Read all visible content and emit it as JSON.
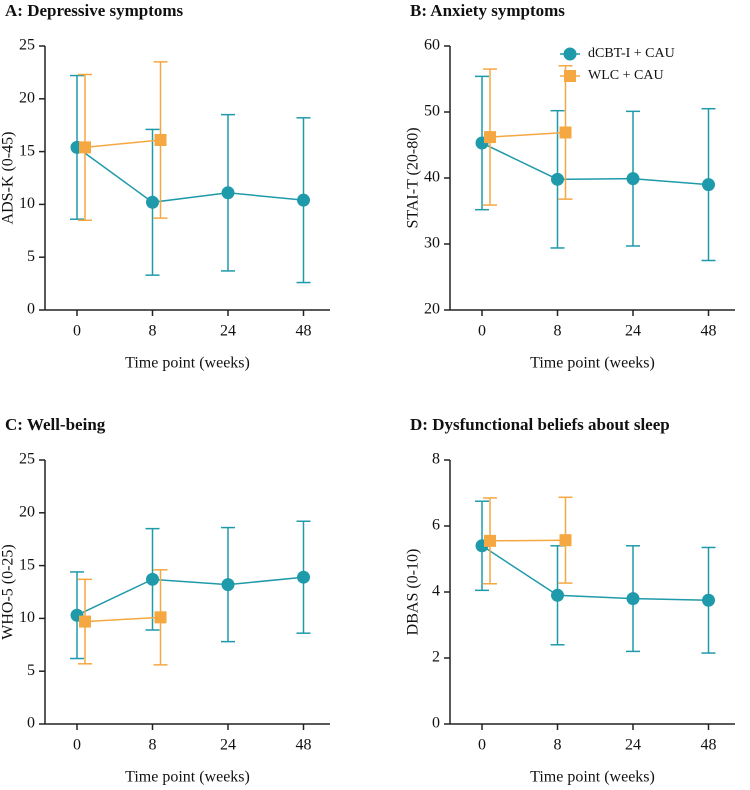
{
  "chart_data": [
    {
      "type": "line",
      "title": "A: Depressive symptoms",
      "xlabel": "Time point (weeks)",
      "ylabel": "ADS-K (0-45)",
      "categories": [
        "0",
        "8",
        "24",
        "48"
      ],
      "ylim": [
        0,
        25
      ],
      "yticks": [
        0,
        5,
        10,
        15,
        20,
        25
      ],
      "series": [
        {
          "color": "#1f9aaa",
          "marker": "circle",
          "values": [
            15.4,
            10.2,
            11.1,
            10.4
          ],
          "errors": [
            6.8,
            6.9,
            7.4,
            7.8
          ]
        },
        {
          "color": "#f5a742",
          "marker": "square",
          "values": [
            15.4,
            16.1,
            null,
            null
          ],
          "errors": [
            6.9,
            7.4,
            null,
            null
          ]
        }
      ]
    },
    {
      "type": "line",
      "title": "B: Anxiety symptoms",
      "xlabel": "Time point (weeks)",
      "ylabel": "STAI-T (20-80)",
      "categories": [
        "0",
        "8",
        "24",
        "48"
      ],
      "ylim": [
        20,
        60
      ],
      "yticks": [
        20,
        30,
        40,
        50,
        60
      ],
      "legend": "top-right",
      "series": [
        {
          "name": "dCBT-I + CAU",
          "color": "#1f9aaa",
          "marker": "circle",
          "values": [
            45.3,
            39.8,
            39.9,
            39.0
          ],
          "errors": [
            10.1,
            10.4,
            10.2,
            11.5
          ]
        },
        {
          "name": "WLC + CAU",
          "color": "#f5a742",
          "marker": "square",
          "values": [
            46.2,
            46.9,
            null,
            null
          ],
          "errors": [
            10.3,
            10.1,
            null,
            null
          ]
        }
      ]
    },
    {
      "type": "line",
      "title": "C: Well-being",
      "xlabel": "Time point (weeks)",
      "ylabel": "WHO-5 (0-25)",
      "categories": [
        "0",
        "8",
        "24",
        "48"
      ],
      "ylim": [
        0,
        25
      ],
      "yticks": [
        0,
        5,
        10,
        15,
        20,
        25
      ],
      "series": [
        {
          "color": "#1f9aaa",
          "marker": "circle",
          "values": [
            10.3,
            13.7,
            13.2,
            13.9
          ],
          "errors": [
            4.1,
            4.8,
            5.4,
            5.3
          ]
        },
        {
          "color": "#f5a742",
          "marker": "square",
          "values": [
            9.7,
            10.1,
            null,
            null
          ],
          "errors": [
            4.0,
            4.5,
            null,
            null
          ]
        }
      ]
    },
    {
      "type": "line",
      "title": "D: Dysfunctional beliefs about sleep",
      "xlabel": "Time point (weeks)",
      "ylabel": "DBAS (0-10)",
      "categories": [
        "0",
        "8",
        "24",
        "48"
      ],
      "ylim": [
        0,
        8
      ],
      "yticks": [
        0,
        2,
        4,
        6,
        8
      ],
      "series": [
        {
          "color": "#1f9aaa",
          "marker": "circle",
          "values": [
            5.4,
            3.9,
            3.8,
            3.75
          ],
          "errors": [
            1.35,
            1.5,
            1.6,
            1.6
          ]
        },
        {
          "color": "#f5a742",
          "marker": "square",
          "values": [
            5.55,
            5.57,
            null,
            null
          ],
          "errors": [
            1.3,
            1.3,
            null,
            null
          ]
        }
      ]
    }
  ]
}
